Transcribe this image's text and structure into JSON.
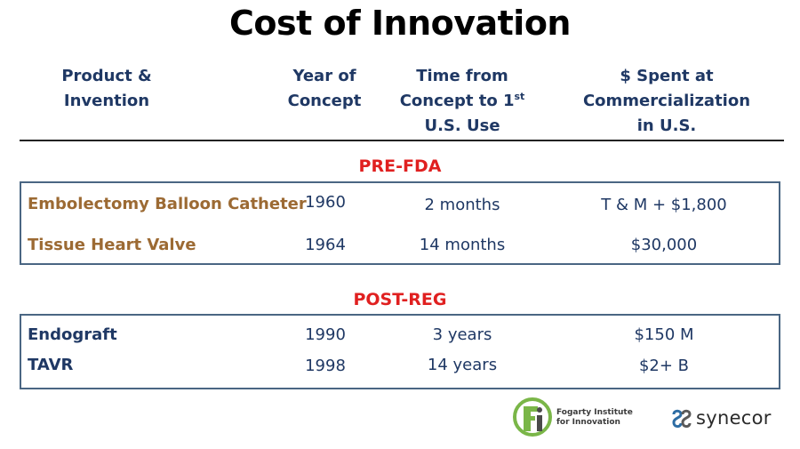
{
  "title": "Cost of Innovation",
  "headers": {
    "product": [
      "Product &",
      "Invention"
    ],
    "year": [
      "Year of",
      "Concept"
    ],
    "time_line1_main": "Time from",
    "time_line2_main": "Concept to 1",
    "time_line2_sup": "st",
    "time_line3": "U.S. Use",
    "spent": [
      "$ Spent at",
      "Commercialization",
      "in U.S."
    ]
  },
  "sections": {
    "pre_fda": {
      "label": "PRE-FDA",
      "rows": [
        {
          "name": "Embolectomy Balloon Catheter",
          "year": "1960",
          "time": "2 months",
          "spent": "T & M + $1,800"
        },
        {
          "name": "Tissue Heart Valve",
          "year": "1964",
          "time": "14 months",
          "spent": "$30,000"
        }
      ]
    },
    "post_reg": {
      "label": "POST-REG",
      "rows": [
        {
          "name": "Endograft",
          "year": "1990",
          "time": "3 years",
          "spent": "$150 M"
        },
        {
          "name": "TAVR",
          "year": "1998",
          "time": "14 years",
          "spent": "$2+ B"
        }
      ]
    }
  },
  "logos": {
    "fogarty_line1": "Fogarty Institute",
    "fogarty_line2": "for Innovation",
    "synecor": "synecor"
  },
  "colors": {
    "header_navy": "#1f3864",
    "section_red": "#e02020",
    "pre_fda_name_brown": "#9c6a33",
    "box_border": "#4a6683",
    "fogarty_green": "#7ab648"
  }
}
